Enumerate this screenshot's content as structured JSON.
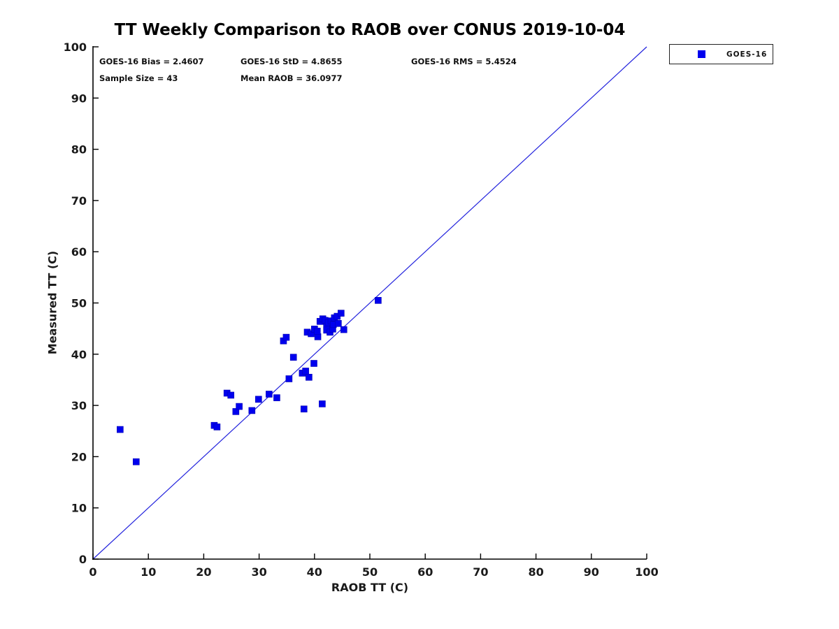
{
  "figure_title": "TT Weekly Comparison to RAOB over CONUS 2019-10-04",
  "annotations": {
    "row1": [
      "GOES-16 Bias = 2.4607",
      "GOES-16 StD = 4.8655",
      "GOES-16 RMS = 5.4524"
    ],
    "row2": [
      "Sample Size = 43",
      "Mean RAOB = 36.0977"
    ]
  },
  "legend": {
    "position": "outside-top-right",
    "entries": [
      {
        "label": "GOES-16",
        "marker": "filled-square",
        "color": "#0000ee"
      }
    ]
  },
  "colors": {
    "marker": "#0000ee",
    "marker_edge": "#0000b4",
    "reference_line": "#2222dd",
    "axis": "#000000",
    "text": "#1a1a1a",
    "background": "#ffffff"
  },
  "chart_data": {
    "type": "scatter",
    "title": "TT Weekly Comparison to RAOB over CONUS 2019-10-04",
    "xlabel": "RAOB TT (C)",
    "ylabel": "Measured TT (C)",
    "xlim": [
      0,
      100
    ],
    "ylim": [
      0,
      100
    ],
    "xticks": [
      0,
      10,
      20,
      30,
      40,
      50,
      60,
      70,
      80,
      90,
      100
    ],
    "yticks": [
      0,
      10,
      20,
      30,
      40,
      50,
      60,
      70,
      80,
      90,
      100
    ],
    "grid": false,
    "legend_position": "outside-top-right",
    "stats": {
      "bias": 2.4607,
      "std": 4.8655,
      "rms": 5.4524,
      "sample_size": 43,
      "mean_raob": 36.0977
    },
    "reference_line": {
      "type": "identity",
      "from": [
        0,
        0
      ],
      "to": [
        100,
        100
      ],
      "color": "#2222dd"
    },
    "series": [
      {
        "name": "GOES-16",
        "marker": "square",
        "color": "#0000ee",
        "points": [
          [
            4.9,
            25.3
          ],
          [
            7.8,
            19.0
          ],
          [
            21.9,
            26.1
          ],
          [
            22.4,
            25.8
          ],
          [
            24.2,
            32.4
          ],
          [
            24.9,
            32.0
          ],
          [
            25.8,
            28.8
          ],
          [
            26.4,
            29.8
          ],
          [
            28.7,
            29.0
          ],
          [
            29.9,
            31.2
          ],
          [
            31.8,
            32.2
          ],
          [
            33.2,
            31.5
          ],
          [
            35.4,
            35.2
          ],
          [
            36.2,
            39.4
          ],
          [
            37.8,
            36.3
          ],
          [
            38.4,
            36.7
          ],
          [
            39.0,
            35.5
          ],
          [
            38.1,
            29.3
          ],
          [
            41.4,
            30.3
          ],
          [
            39.9,
            38.2
          ],
          [
            34.4,
            42.6
          ],
          [
            34.9,
            43.3
          ],
          [
            38.7,
            44.3
          ],
          [
            39.4,
            44.0
          ],
          [
            40.0,
            44.9
          ],
          [
            40.6,
            43.4
          ],
          [
            40.5,
            44.5
          ],
          [
            41.0,
            46.4
          ],
          [
            41.5,
            46.9
          ],
          [
            41.9,
            46.6
          ],
          [
            42.2,
            45.4
          ],
          [
            42.2,
            44.7
          ],
          [
            42.5,
            46.2
          ],
          [
            42.8,
            44.3
          ],
          [
            43.0,
            46.5
          ],
          [
            43.3,
            44.9
          ],
          [
            43.4,
            45.8
          ],
          [
            43.6,
            47.1
          ],
          [
            44.1,
            47.4
          ],
          [
            44.3,
            46.0
          ],
          [
            44.8,
            48.0
          ],
          [
            45.3,
            44.8
          ],
          [
            51.5,
            50.5
          ]
        ]
      }
    ]
  }
}
